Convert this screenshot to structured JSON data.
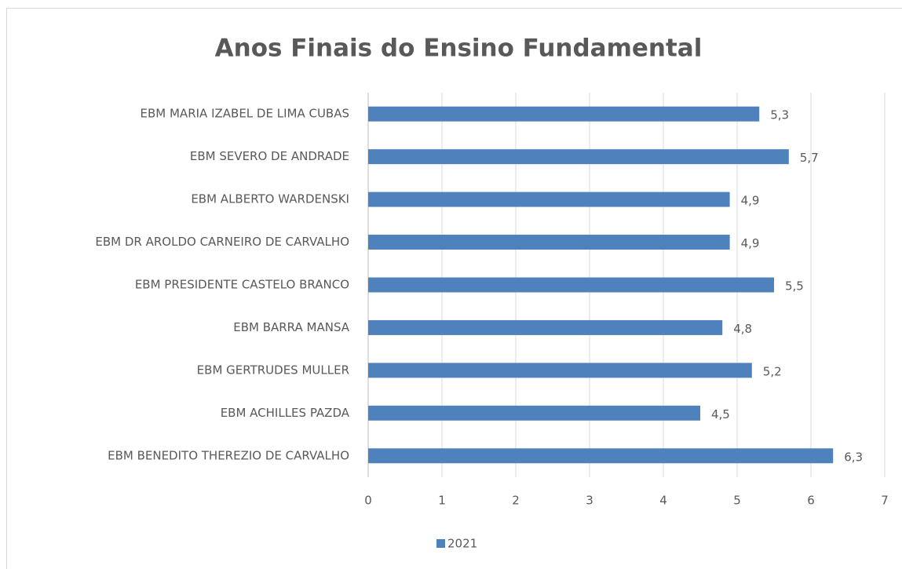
{
  "chart_data": {
    "type": "bar",
    "orientation": "horizontal",
    "title": "Anos Finais do Ensino Fundamental",
    "categories": [
      "EBM MARIA IZABEL DE LIMA CUBAS",
      "EBM SEVERO DE ANDRADE",
      "EBM ALBERTO WARDENSKI",
      "EBM DR AROLDO CARNEIRO DE CARVALHO",
      "EBM PRESIDENTE CASTELO BRANCO",
      "EBM BARRA MANSA",
      "EBM GERTRUDES MULLER",
      "EBM ACHILLES PAZDA",
      "EBM BENEDITO THEREZIO DE CARVALHO"
    ],
    "series": [
      {
        "name": "2021",
        "color": "#4f81bd",
        "values": [
          5.3,
          5.7,
          4.9,
          4.9,
          5.5,
          4.8,
          5.2,
          4.5,
          6.3
        ],
        "value_labels": [
          "5,3",
          "5,7",
          "4,9",
          "4,9",
          "5,5",
          "4,8",
          "5,2",
          "4,5",
          "6,3"
        ]
      }
    ],
    "xlim": [
      0,
      7
    ],
    "xticks": [
      0,
      1,
      2,
      3,
      4,
      5,
      6,
      7
    ],
    "grid": true,
    "legend": "bottom"
  }
}
